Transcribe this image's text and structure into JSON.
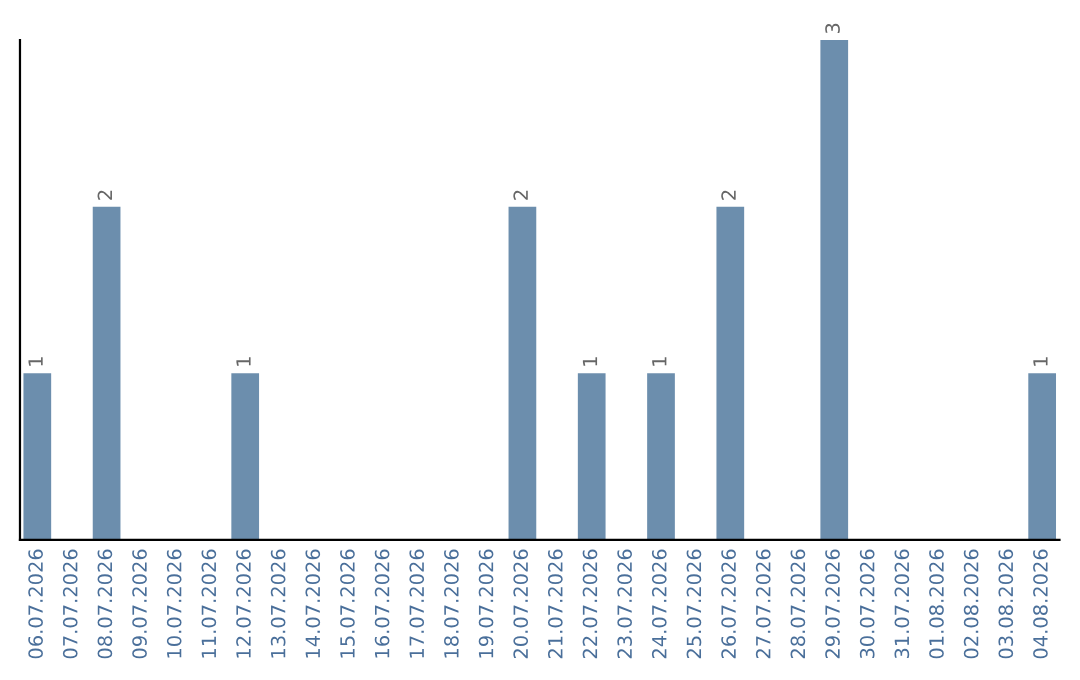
{
  "chart_data": {
    "type": "bar",
    "categories": [
      "06.07.2026",
      "07.07.2026",
      "08.07.2026",
      "09.07.2026",
      "10.07.2026",
      "11.07.2026",
      "12.07.2026",
      "13.07.2026",
      "14.07.2026",
      "15.07.2026",
      "16.07.2026",
      "17.07.2026",
      "18.07.2026",
      "19.07.2026",
      "20.07.2026",
      "21.07.2026",
      "22.07.2026",
      "23.07.2026",
      "24.07.2026",
      "25.07.2026",
      "26.07.2026",
      "27.07.2026",
      "28.07.2026",
      "29.07.2026",
      "30.07.2026",
      "31.07.2026",
      "01.08.2026",
      "02.08.2026",
      "03.08.2026",
      "04.08.2026"
    ],
    "values": [
      1,
      0,
      2,
      0,
      0,
      0,
      1,
      0,
      0,
      0,
      0,
      0,
      0,
      0,
      2,
      0,
      1,
      0,
      1,
      0,
      2,
      0,
      0,
      3,
      0,
      0,
      0,
      0,
      0,
      1
    ],
    "value_labels": [
      "1",
      null,
      "2",
      null,
      null,
      null,
      "1",
      null,
      null,
      null,
      null,
      null,
      null,
      null,
      "2",
      null,
      "1",
      null,
      "1",
      null,
      "2",
      null,
      null,
      "3",
      null,
      null,
      null,
      null,
      null,
      "1"
    ],
    "color": "#6c8ead",
    "ylim": [
      0,
      3
    ],
    "tick_labels": "x",
    "grid": false,
    "legend": false
  }
}
